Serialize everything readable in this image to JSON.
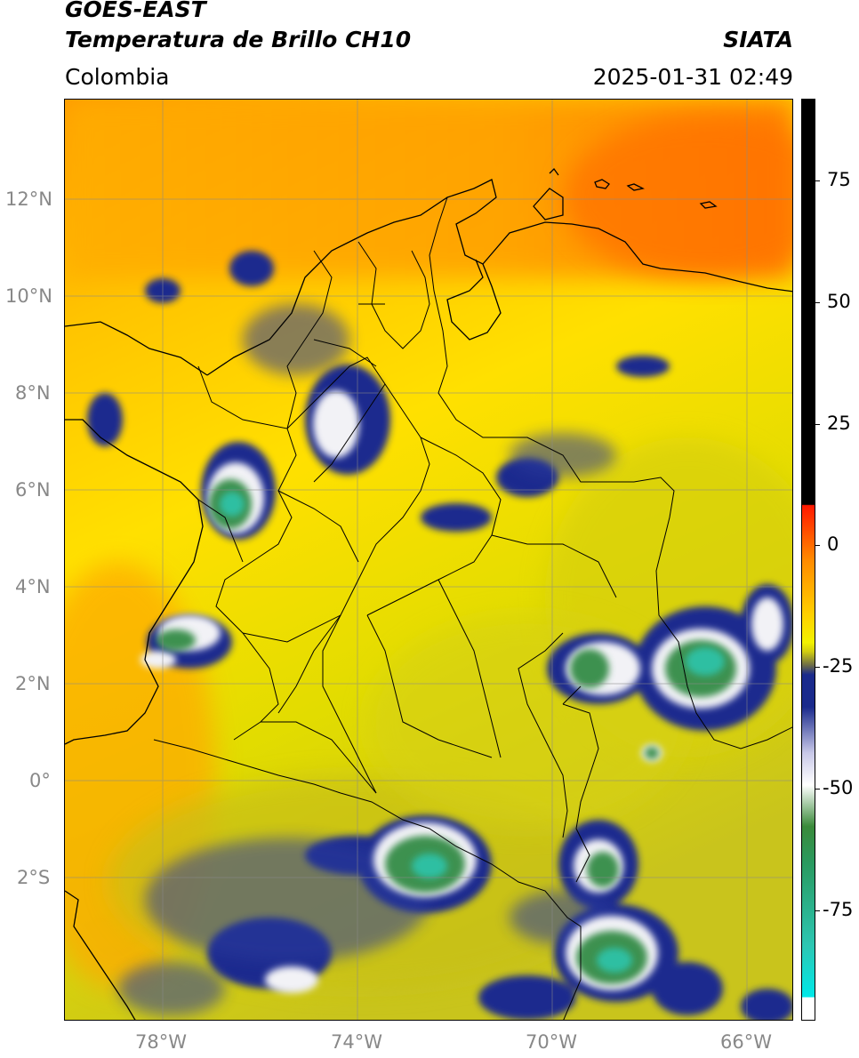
{
  "header": {
    "title_line1": "GOES-EAST",
    "title_line2": "Temperatura de Brillo CH10",
    "region": "Colombia",
    "agency": "SIATA",
    "timestamp": "2025-01-31 02:49"
  },
  "axes": {
    "lat_labels": [
      "12°N",
      "10°N",
      "8°N",
      "6°N",
      "4°N",
      "2°N",
      "0°",
      "2°S"
    ],
    "lon_labels": [
      "78°W",
      "74°W",
      "70°W",
      "66°W"
    ]
  },
  "colorbar": {
    "labels": [
      "75",
      "50",
      "25",
      "0",
      "-25",
      "-50",
      "-75"
    ],
    "colors": [
      "#000000",
      "#ff2000",
      "#ff8c00",
      "#ffd000",
      "#f2f200",
      "#c7c71f",
      "#1b2a8c",
      "#ffffff",
      "#3a8a3a",
      "#2cc7b3",
      "#00e6e6"
    ]
  },
  "map_colors": {
    "warm_orange": "#ff8a00",
    "orange": "#ffb000",
    "yellow": "#ffe000",
    "olive_yellow": "#d4cc10",
    "dark_blue": "#1a2a90",
    "white": "#f4f4f4",
    "green": "#3b8f4a",
    "teal": "#2bbfa0"
  }
}
